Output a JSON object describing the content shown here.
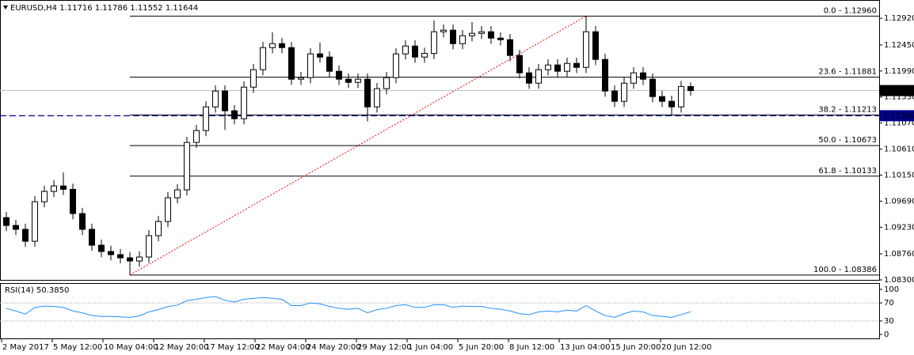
{
  "chart_data": {
    "type": "candlestick",
    "symbol": "EURUSD,H4",
    "open": [
      1.094,
      1.09262,
      1.09193,
      1.08983,
      1.09681,
      1.09863,
      1.0996,
      1.099,
      1.09472,
      1.09193,
      1.08913,
      1.08802,
      1.08746,
      1.0869,
      1.08634,
      1.08704,
      1.09081,
      1.09332,
      1.09751,
      1.09891,
      1.10728,
      1.10938,
      1.11356,
      1.11636,
      1.11287,
      1.11147,
      1.11705,
      1.12013,
      1.12403,
      1.12473,
      1.12403,
      1.11845,
      1.11873,
      1.12292,
      1.12236,
      1.11985,
      1.11845,
      1.11789,
      1.11845,
      1.11356,
      1.11678,
      1.11873,
      1.12292,
      1.12431,
      1.12236,
      1.123,
      1.12683,
      1.12711,
      1.12473,
      1.12613,
      1.12655,
      1.12683,
      1.12571,
      1.12543,
      1.12264,
      1.11957,
      1.11775,
      1.12013,
      1.12096,
      1.11985,
      1.12124,
      1.12054,
      1.12683,
      1.12194,
      1.11636,
      1.11454,
      1.11775,
      1.11957,
      1.11845,
      1.11538,
      1.11454,
      1.11356,
      1.11716
    ],
    "high": [
      1.095,
      1.09362,
      1.09293,
      1.09781,
      1.09963,
      1.1006,
      1.10198,
      1.1,
      1.09572,
      1.09293,
      1.09013,
      1.08902,
      1.08846,
      1.0879,
      1.08804,
      1.09181,
      1.09432,
      1.09851,
      1.09991,
      1.10828,
      1.11038,
      1.11456,
      1.11736,
      1.11736,
      1.11387,
      1.11805,
      1.12113,
      1.12503,
      1.12673,
      1.12573,
      1.12503,
      1.11973,
      1.12392,
      1.12492,
      1.12336,
      1.12085,
      1.11945,
      1.11945,
      1.11945,
      1.11778,
      1.11973,
      1.12392,
      1.12531,
      1.12531,
      1.124,
      1.12883,
      1.12811,
      1.12811,
      1.12713,
      1.12855,
      1.12783,
      1.12783,
      1.12671,
      1.12643,
      1.12364,
      1.12057,
      1.12113,
      1.12196,
      1.12196,
      1.12224,
      1.12224,
      1.1296,
      1.12783,
      1.12294,
      1.11736,
      1.11875,
      1.12057,
      1.12057,
      1.11945,
      1.11638,
      1.11554,
      1.11816,
      1.11786
    ],
    "low": [
      1.09162,
      1.09093,
      1.08883,
      1.08883,
      1.09581,
      1.09763,
      1.098,
      1.09372,
      1.09093,
      1.08813,
      1.08702,
      1.08646,
      1.0859,
      1.08386,
      1.08534,
      1.08604,
      1.08981,
      1.09232,
      1.09651,
      1.09791,
      1.10628,
      1.10838,
      1.11256,
      1.1095,
      1.11047,
      1.11047,
      1.11605,
      1.11913,
      1.12303,
      1.12303,
      1.11745,
      1.11745,
      1.11773,
      1.12136,
      1.11885,
      1.11745,
      1.11689,
      1.11689,
      1.111,
      1.11256,
      1.11578,
      1.11773,
      1.12192,
      1.12136,
      1.12136,
      1.122,
      1.12583,
      1.12373,
      1.12373,
      1.12513,
      1.12555,
      1.12471,
      1.12443,
      1.12164,
      1.11857,
      1.11675,
      1.11675,
      1.11913,
      1.11885,
      1.11885,
      1.11954,
      1.11954,
      1.12094,
      1.11536,
      1.11354,
      1.11354,
      1.11675,
      1.11745,
      1.11438,
      1.11354,
      1.112,
      1.11256,
      1.11552
    ],
    "close": [
      1.09262,
      1.09193,
      1.08983,
      1.09681,
      1.09863,
      1.0996,
      1.099,
      1.09472,
      1.09193,
      1.08913,
      1.08802,
      1.08746,
      1.0869,
      1.08634,
      1.08704,
      1.09081,
      1.09332,
      1.09751,
      1.09891,
      1.10728,
      1.10938,
      1.11356,
      1.11636,
      1.11287,
      1.11147,
      1.11705,
      1.12013,
      1.12403,
      1.12473,
      1.12403,
      1.11845,
      1.11873,
      1.12292,
      1.12236,
      1.11985,
      1.11845,
      1.11789,
      1.11845,
      1.11356,
      1.11678,
      1.11873,
      1.12292,
      1.12431,
      1.12236,
      1.123,
      1.12683,
      1.12711,
      1.12473,
      1.12613,
      1.12655,
      1.12683,
      1.12571,
      1.12543,
      1.12264,
      1.11957,
      1.11775,
      1.12013,
      1.12096,
      1.11985,
      1.12124,
      1.12054,
      1.12683,
      1.12194,
      1.11636,
      1.11454,
      1.11775,
      1.11957,
      1.11845,
      1.11538,
      1.11454,
      1.11356,
      1.11716,
      1.11644
    ],
    "ylim": [
      1.083,
      1.1323
    ],
    "yticks": [
      {
        "value": 1.1292,
        "label": "1.12920"
      },
      {
        "value": 1.1245,
        "label": "1.12450"
      },
      {
        "value": 1.1199,
        "label": "1.11990"
      },
      {
        "value": 1.1153,
        "label": "1.11530"
      },
      {
        "value": 1.1107,
        "label": "1.11070"
      },
      {
        "value": 1.1061,
        "label": "1.10610"
      },
      {
        "value": 1.1015,
        "label": "1.10150"
      },
      {
        "value": 1.0969,
        "label": "1.09690"
      },
      {
        "value": 1.0923,
        "label": "1.09230"
      },
      {
        "value": 1.0876,
        "label": "1.08760"
      },
      {
        "value": 1.083,
        "label": "1.08300"
      }
    ],
    "fib_levels": [
      {
        "value": 1.1296,
        "label": "0.0 - 1.12960"
      },
      {
        "value": 1.11881,
        "label": "23.6 - 1.11881"
      },
      {
        "value": 1.11213,
        "label": "38.2 - 1.11213"
      },
      {
        "value": 1.10673,
        "label": "50.0 - 1.10673"
      },
      {
        "value": 1.10133,
        "label": "61.8 - 1.10133"
      },
      {
        "value": 1.08386,
        "label": "100.0 - 1.08386"
      }
    ],
    "hline": {
      "value": 1.112,
      "label": "1.11200",
      "color": "#00008b"
    },
    "price_line": {
      "value": 1.11644,
      "label": "1.11644"
    },
    "x_labels": [
      "2 May 2017",
      "5 May 12:00",
      "10 May 04:00",
      "12 May 20:00",
      "17 May 12:00",
      "22 May 04:00",
      "24 May 20:00",
      "29 May 12:00",
      "1 Jun 04:00",
      "5 Jun 20:00",
      "8 Jun 12:00",
      "13 Jun 04:00",
      "15 Jun 20:00",
      "20 Jun 12:00"
    ],
    "rsi": {
      "label": "RSI(14) 50.3850",
      "color": "#1e90ff",
      "ylim": [
        0,
        100
      ],
      "yticks": [
        100,
        70,
        30,
        0
      ],
      "levels": [
        70,
        30
      ],
      "values": [
        58,
        52,
        45,
        60,
        63,
        62,
        60,
        52,
        48,
        42,
        40,
        40,
        39,
        38,
        41,
        50,
        55,
        62,
        65,
        75,
        78,
        82,
        84,
        76,
        72,
        78,
        80,
        82,
        80,
        78,
        64,
        64,
        70,
        68,
        62,
        58,
        56,
        58,
        48,
        55,
        58,
        64,
        66,
        60,
        60,
        66,
        66,
        60,
        63,
        62,
        62,
        58,
        56,
        52,
        46,
        44,
        50,
        52,
        50,
        54,
        52,
        64,
        52,
        42,
        38,
        46,
        52,
        50,
        42,
        40,
        38,
        44,
        50.385
      ]
    }
  }
}
